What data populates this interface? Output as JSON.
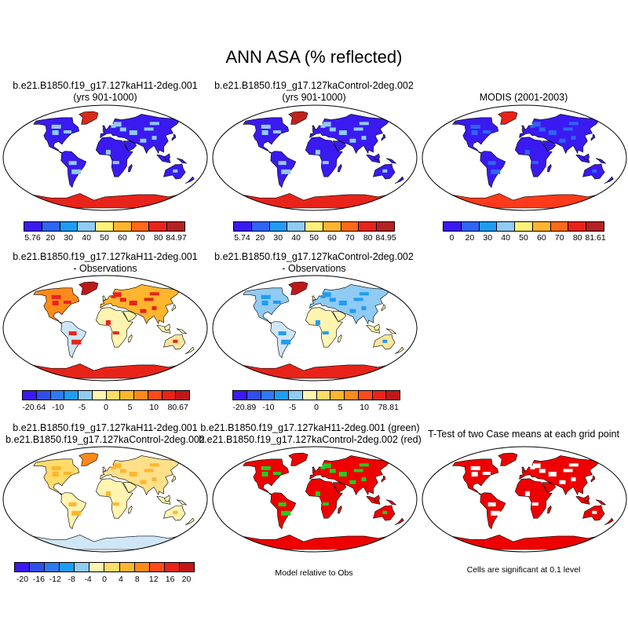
{
  "title": "ANN ASA (% reflected)",
  "colors": {
    "abs": [
      "#3a1af0",
      "#2f64f5",
      "#1f9cf2",
      "#8fcbf2",
      "#fff07a",
      "#ffb52e",
      "#ff6a1a",
      "#e8231a",
      "#b52222"
    ],
    "diff": [
      "#3a1af0",
      "#2f4fe8",
      "#2f7af0",
      "#1f9cf2",
      "#8fcbf2",
      "#fff4b0",
      "#ffdb6a",
      "#ffb52e",
      "#ff8a1a",
      "#ff4a1a",
      "#e8231a",
      "#c01818"
    ],
    "land_green": "#22cc22",
    "land_red": "#ee0000",
    "ocean": "#ffffff"
  },
  "rows": [
    {
      "panels": [
        {
          "title_lines": [
            "b.e21.B1850.f19_g17.127kaH11-2deg.001",
            "(yrs 901-1000)"
          ],
          "colorbar_labels": [
            "5.76",
            "20",
            "30",
            "40",
            "50",
            "60",
            "70",
            "80",
            "84.97"
          ]
        },
        {
          "title_lines": [
            "b.e21.B1850.f19_g17.127kaControl-2deg.002",
            "(yrs 901-1000)"
          ],
          "colorbar_labels": [
            "5.74",
            "20",
            "30",
            "40",
            "50",
            "60",
            "70",
            "80",
            "84.95"
          ]
        },
        {
          "title_lines": [
            "",
            "MODIS (2001-2003)"
          ],
          "colorbar_labels": [
            "0",
            "20",
            "30",
            "40",
            "50",
            "60",
            "70",
            "80",
            "81.61"
          ]
        }
      ]
    },
    {
      "panels": [
        {
          "title_lines": [
            "b.e21.B1850.f19_g17.127kaH11-2deg.001",
            "- Observations"
          ],
          "colorbar_labels": [
            "-20.64",
            "-10",
            "-5",
            "0",
            "5",
            "10",
            "80.67"
          ]
        },
        {
          "title_lines": [
            "b.e21.B1850.f19_g17.127kaControl-2deg.002",
            "- Observations"
          ],
          "colorbar_labels": [
            "-20.89",
            "-10",
            "-5",
            "0",
            "5",
            "10",
            "78.81"
          ]
        }
      ]
    },
    {
      "panels": [
        {
          "title_lines": [
            "b.e21.B1850.f19_g17.127kaH11-2deg.001",
            "b.e21.B1850.f19_g17.127kaControl-2deg.002"
          ],
          "colorbar_labels": [
            "-20",
            "-16",
            "-12",
            "-8",
            "-4",
            "0",
            "4",
            "8",
            "12",
            "16",
            "20"
          ]
        },
        {
          "title_lines": [
            "b.e21.B1850.f19_g17.127kaH11-2deg.001 (green)",
            "b.e21.B1850.f19_g17.127kaControl-2deg.002 (red)"
          ],
          "footer": "Model relative to Obs"
        },
        {
          "title_lines": [
            "T-Test of two Case means at each grid point"
          ],
          "footer": "Cells are significant at 0.1 level"
        }
      ]
    }
  ]
}
